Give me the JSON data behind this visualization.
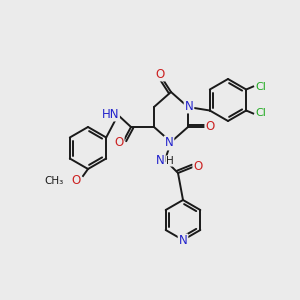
{
  "bg_color": "#ebebeb",
  "atom_colors": {
    "C": "#1a1a1a",
    "N": "#2222cc",
    "O": "#cc2222",
    "Cl": "#22aa22",
    "H": "#1a1a1a"
  },
  "bond_color": "#1a1a1a",
  "line_width": 1.4,
  "figsize": [
    3.0,
    3.0
  ],
  "dpi": 100
}
